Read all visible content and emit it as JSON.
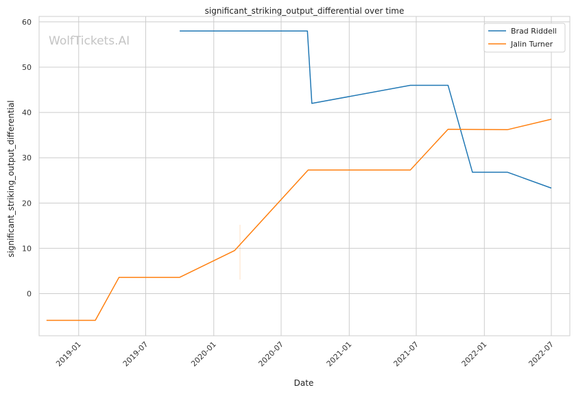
{
  "chart_data": {
    "type": "line",
    "title": "significant_striking_output_differential over time",
    "xlabel": "Date",
    "ylabel": "significant_striking_output_differential",
    "watermark": "WolfTickets.AI",
    "xlim": [
      "2018-09-16",
      "2022-08-20"
    ],
    "ylim": [
      -9.3,
      61.2
    ],
    "x_ticks": [
      "2019-01",
      "2019-07",
      "2020-01",
      "2020-07",
      "2021-01",
      "2021-07",
      "2022-01",
      "2022-07"
    ],
    "y_ticks": [
      0,
      10,
      20,
      30,
      40,
      50,
      60
    ],
    "grid": true,
    "legend_position": "top-right",
    "series": [
      {
        "name": "Brad Riddell",
        "color": "#1f77b4",
        "points": [
          {
            "x": "2019-10-01",
            "y": 58.0
          },
          {
            "x": "2020-09-10",
            "y": 58.0
          },
          {
            "x": "2020-09-22",
            "y": 42.0
          },
          {
            "x": "2021-06-15",
            "y": 46.0
          },
          {
            "x": "2021-09-25",
            "y": 46.0
          },
          {
            "x": "2021-11-30",
            "y": 26.8
          },
          {
            "x": "2022-03-05",
            "y": 26.8
          },
          {
            "x": "2022-07-01",
            "y": 23.3
          }
        ]
      },
      {
        "name": "Jalin Turner",
        "color": "#ff7f0e",
        "points": [
          {
            "x": "2018-10-06",
            "y": -5.9
          },
          {
            "x": "2019-02-15",
            "y": -5.9
          },
          {
            "x": "2019-04-20",
            "y": 3.6
          },
          {
            "x": "2019-10-01",
            "y": 3.6
          },
          {
            "x": "2020-02-26",
            "y": 9.5
          },
          {
            "x": "2020-09-12",
            "y": 27.3
          },
          {
            "x": "2021-06-15",
            "y": 27.3
          },
          {
            "x": "2021-09-25",
            "y": 36.3
          },
          {
            "x": "2022-03-05",
            "y": 36.2
          },
          {
            "x": "2022-07-01",
            "y": 38.5
          }
        ]
      }
    ]
  }
}
